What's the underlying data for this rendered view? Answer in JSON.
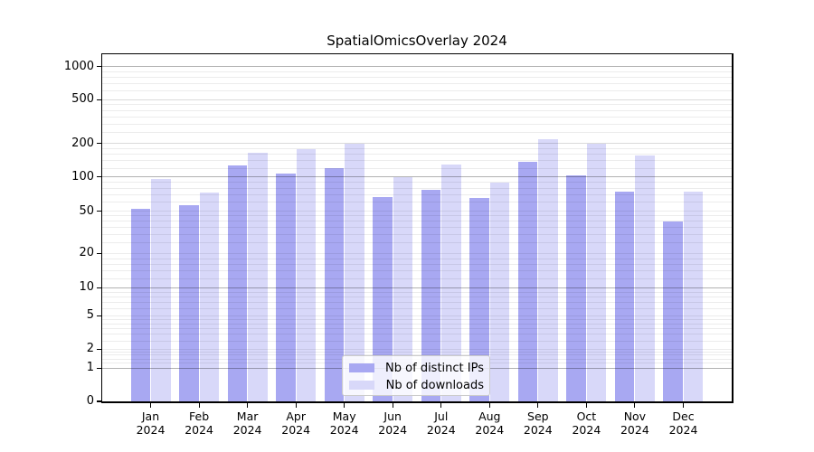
{
  "title": "SpatialOmicsOverlay 2024",
  "chart_data": {
    "type": "bar",
    "title": "SpatialOmicsOverlay 2024",
    "categories": [
      "Jan 2024",
      "Feb 2024",
      "Mar 2024",
      "Apr 2024",
      "May 2024",
      "Jun 2024",
      "Jul 2024",
      "Aug 2024",
      "Sep 2024",
      "Oct 2024",
      "Nov 2024",
      "Dec 2024"
    ],
    "x_tick_line1": [
      "Jan",
      "Feb",
      "Mar",
      "Apr",
      "May",
      "Jun",
      "Jul",
      "Aug",
      "Sep",
      "Oct",
      "Nov",
      "Dec"
    ],
    "x_tick_line2": [
      "2024",
      "2024",
      "2024",
      "2024",
      "2024",
      "2024",
      "2024",
      "2024",
      "2024",
      "2024",
      "2024",
      "2024"
    ],
    "series": [
      {
        "name": "Nb of distinct IPs",
        "color": "#a8a8f2",
        "values": [
          52,
          56,
          128,
          108,
          120,
          67,
          77,
          65,
          138,
          103,
          74,
          40
        ]
      },
      {
        "name": "Nb of downloads",
        "color": "#d8d8f9",
        "values": [
          96,
          73,
          165,
          178,
          198,
          99,
          130,
          90,
          217,
          200,
          156,
          74
        ]
      }
    ],
    "xlabel": "",
    "ylabel": "",
    "yscale": "symlog",
    "y_ticks": [
      0,
      1,
      2,
      5,
      10,
      20,
      50,
      100,
      200,
      500,
      1000
    ],
    "y_major_gridlines": [
      1,
      10,
      100,
      1000
    ],
    "y_minor_gridline_subs": [
      1.2,
      1.4,
      1.6,
      1.8,
      2,
      2.5,
      3,
      3.5,
      4,
      4.5,
      5,
      6,
      7,
      8,
      9
    ],
    "ylim": [
      0,
      1290
    ],
    "grid": true,
    "legend_position": "lower center"
  },
  "colors": {
    "background": "#ffffff",
    "bar_dark": "#a8a8f2",
    "bar_light": "#d8d8f9",
    "major_grid": "#b4b4b4",
    "minor_grid": "#ececec",
    "spine": "#000000",
    "text": "#000000"
  }
}
